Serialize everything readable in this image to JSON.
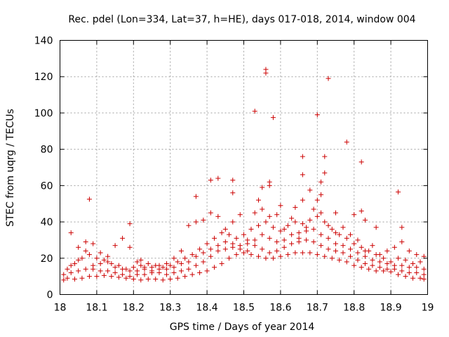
{
  "chart_data": {
    "type": "scatter",
    "title": "Rec. pdel (Lon=334, Lat=37, h=HE), days 017-018, 2014, window 004",
    "xlabel": "GPS time / Days of year 2014",
    "ylabel": "STEC from uqrg / TECUs",
    "xlim": [
      18,
      19
    ],
    "ylim": [
      0,
      140
    ],
    "x_ticks": [
      "18",
      "18.1",
      "18.2",
      "18.3",
      "18.4",
      "18.5",
      "18.6",
      "18.7",
      "18.8",
      "18.9",
      "19"
    ],
    "y_ticks": [
      "0",
      "20",
      "40",
      "60",
      "80",
      "100",
      "120",
      "140"
    ],
    "x_tick_values": [
      18,
      18.1,
      18.2,
      18.3,
      18.4,
      18.5,
      18.6,
      18.7,
      18.8,
      18.9,
      19
    ],
    "y_tick_values": [
      0,
      20,
      40,
      60,
      80,
      100,
      120,
      140
    ],
    "grid": true,
    "marker": "+",
    "color": "#cc0000",
    "series": [
      {
        "name": "STEC",
        "points": [
          [
            18.03,
            34
          ],
          [
            18.07,
            29
          ],
          [
            18.08,
            52.5
          ],
          [
            18.19,
            39
          ],
          [
            18.22,
            19
          ],
          [
            18.37,
            54
          ],
          [
            18.41,
            63
          ],
          [
            18.43,
            64
          ],
          [
            18.47,
            63
          ],
          [
            18.47,
            56
          ],
          [
            18.53,
            101
          ],
          [
            18.56,
            124
          ],
          [
            18.56,
            122
          ],
          [
            18.58,
            97.5
          ],
          [
            18.57,
            62
          ],
          [
            18.57,
            60
          ],
          [
            18.55,
            59
          ],
          [
            18.54,
            52
          ],
          [
            18.6,
            49
          ],
          [
            18.64,
            48
          ],
          [
            18.66,
            52
          ],
          [
            18.68,
            57.5
          ],
          [
            18.66,
            66
          ],
          [
            18.66,
            76
          ],
          [
            18.7,
            99
          ],
          [
            18.73,
            119
          ],
          [
            18.72,
            76
          ],
          [
            18.72,
            67
          ],
          [
            18.71,
            62
          ],
          [
            18.71,
            55
          ],
          [
            18.7,
            52
          ],
          [
            18.78,
            84
          ],
          [
            18.82,
            73
          ],
          [
            18.82,
            46
          ],
          [
            18.92,
            56.5
          ],
          [
            18.93,
            37
          ],
          [
            18.86,
            37
          ],
          [
            18.83,
            41
          ],
          [
            18.8,
            44
          ],
          [
            18.75,
            45
          ],
          [
            18.01,
            8
          ],
          [
            18.02,
            9
          ],
          [
            18.04,
            8.5
          ],
          [
            18.06,
            9
          ],
          [
            18.08,
            10
          ],
          [
            18.1,
            10
          ],
          [
            18.12,
            10.5
          ],
          [
            18.14,
            10
          ],
          [
            18.16,
            9.5
          ],
          [
            18.18,
            9
          ],
          [
            18.2,
            8.5
          ],
          [
            18.22,
            8
          ],
          [
            18.24,
            8.5
          ],
          [
            18.26,
            8.5
          ],
          [
            18.28,
            8
          ],
          [
            18.3,
            8.5
          ],
          [
            18.32,
            9
          ],
          [
            18.34,
            10
          ],
          [
            18.36,
            11
          ],
          [
            18.38,
            12
          ],
          [
            18.4,
            13
          ],
          [
            18.42,
            15
          ],
          [
            18.44,
            17
          ],
          [
            18.46,
            20
          ],
          [
            18.48,
            22
          ],
          [
            18.5,
            23
          ],
          [
            18.52,
            22
          ],
          [
            18.54,
            21
          ],
          [
            18.56,
            20
          ],
          [
            18.58,
            20
          ],
          [
            18.6,
            21
          ],
          [
            18.62,
            22
          ],
          [
            18.64,
            23
          ],
          [
            18.66,
            23
          ],
          [
            18.68,
            23
          ],
          [
            18.7,
            22
          ],
          [
            18.72,
            21
          ],
          [
            18.74,
            20
          ],
          [
            18.76,
            19
          ],
          [
            18.78,
            18
          ],
          [
            18.8,
            16
          ],
          [
            18.82,
            15
          ],
          [
            18.84,
            14
          ],
          [
            18.86,
            13
          ],
          [
            18.88,
            13
          ],
          [
            18.9,
            12.5
          ],
          [
            18.92,
            11
          ],
          [
            18.94,
            10
          ],
          [
            18.96,
            9
          ],
          [
            18.98,
            9
          ],
          [
            18.99,
            8.5
          ],
          [
            18.01,
            11
          ],
          [
            18.03,
            12
          ],
          [
            18.05,
            13
          ],
          [
            18.07,
            14
          ],
          [
            18.09,
            14
          ],
          [
            18.11,
            13
          ],
          [
            18.13,
            13
          ],
          [
            18.15,
            12
          ],
          [
            18.17,
            11
          ],
          [
            18.19,
            10
          ],
          [
            18.21,
            11
          ],
          [
            18.23,
            11
          ],
          [
            18.25,
            12
          ],
          [
            18.27,
            12
          ],
          [
            18.29,
            11
          ],
          [
            18.31,
            12
          ],
          [
            18.33,
            13
          ],
          [
            18.35,
            14
          ],
          [
            18.37,
            16
          ],
          [
            18.39,
            18
          ],
          [
            18.41,
            21
          ],
          [
            18.43,
            24
          ],
          [
            18.45,
            25
          ],
          [
            18.47,
            26
          ],
          [
            18.49,
            27
          ],
          [
            18.51,
            28
          ],
          [
            18.53,
            27
          ],
          [
            18.55,
            25
          ],
          [
            18.57,
            23
          ],
          [
            18.59,
            24
          ],
          [
            18.61,
            26
          ],
          [
            18.63,
            28
          ],
          [
            18.65,
            29
          ],
          [
            18.67,
            30
          ],
          [
            18.69,
            29
          ],
          [
            18.71,
            27
          ],
          [
            18.73,
            25
          ],
          [
            18.75,
            24
          ],
          [
            18.77,
            23
          ],
          [
            18.79,
            21
          ],
          [
            18.81,
            19
          ],
          [
            18.83,
            17
          ],
          [
            18.85,
            16
          ],
          [
            18.87,
            15
          ],
          [
            18.89,
            14
          ],
          [
            18.91,
            14
          ],
          [
            18.93,
            13
          ],
          [
            18.95,
            12
          ],
          [
            18.97,
            12
          ],
          [
            18.99,
            11
          ],
          [
            18.02,
            14
          ],
          [
            18.04,
            17
          ],
          [
            18.06,
            20
          ],
          [
            18.08,
            22
          ],
          [
            18.1,
            20
          ],
          [
            18.12,
            19
          ],
          [
            18.14,
            17
          ],
          [
            18.16,
            16
          ],
          [
            18.18,
            14
          ],
          [
            18.2,
            15
          ],
          [
            18.22,
            16
          ],
          [
            18.24,
            17
          ],
          [
            18.26,
            16
          ],
          [
            18.28,
            15
          ],
          [
            18.3,
            16
          ],
          [
            18.32,
            18
          ],
          [
            18.34,
            20
          ],
          [
            18.36,
            22
          ],
          [
            18.38,
            25
          ],
          [
            18.4,
            28
          ],
          [
            18.42,
            31
          ],
          [
            18.44,
            34
          ],
          [
            18.46,
            33
          ],
          [
            18.48,
            31
          ],
          [
            18.5,
            33
          ],
          [
            18.52,
            36
          ],
          [
            18.54,
            38
          ],
          [
            18.56,
            40
          ],
          [
            18.58,
            37
          ],
          [
            18.6,
            35
          ],
          [
            18.62,
            38
          ],
          [
            18.64,
            40
          ],
          [
            18.66,
            39
          ],
          [
            18.68,
            41
          ],
          [
            18.7,
            43
          ],
          [
            18.72,
            40
          ],
          [
            18.74,
            36
          ],
          [
            18.76,
            33
          ],
          [
            18.78,
            31
          ],
          [
            18.8,
            28
          ],
          [
            18.82,
            26
          ],
          [
            18.84,
            24
          ],
          [
            18.86,
            22
          ],
          [
            18.88,
            20
          ],
          [
            18.9,
            18
          ],
          [
            18.92,
            20
          ],
          [
            18.94,
            19
          ],
          [
            18.96,
            17
          ],
          [
            18.98,
            18
          ],
          [
            18.05,
            26
          ],
          [
            18.07,
            24
          ],
          [
            18.09,
            28
          ],
          [
            18.11,
            23
          ],
          [
            18.13,
            21
          ],
          [
            18.15,
            27
          ],
          [
            18.17,
            31
          ],
          [
            18.19,
            26
          ],
          [
            18.21,
            18
          ],
          [
            18.23,
            15
          ],
          [
            18.25,
            13
          ],
          [
            18.27,
            14
          ],
          [
            18.29,
            17
          ],
          [
            18.31,
            20
          ],
          [
            18.33,
            24
          ],
          [
            18.35,
            38
          ],
          [
            18.37,
            40
          ],
          [
            18.39,
            41
          ],
          [
            18.41,
            45
          ],
          [
            18.43,
            43
          ],
          [
            18.45,
            36
          ],
          [
            18.47,
            40
          ],
          [
            18.49,
            44
          ],
          [
            18.51,
            30
          ],
          [
            18.53,
            45
          ],
          [
            18.55,
            47
          ],
          [
            18.57,
            43
          ],
          [
            18.59,
            44
          ],
          [
            18.61,
            36
          ],
          [
            18.63,
            42
          ],
          [
            18.65,
            31
          ],
          [
            18.67,
            35
          ],
          [
            18.69,
            47
          ],
          [
            18.71,
            45
          ],
          [
            18.73,
            38
          ],
          [
            18.75,
            34
          ],
          [
            18.77,
            37
          ],
          [
            18.79,
            33
          ],
          [
            18.81,
            30
          ],
          [
            18.83,
            24
          ],
          [
            18.85,
            27
          ],
          [
            18.87,
            22
          ],
          [
            18.89,
            24
          ],
          [
            18.91,
            26
          ],
          [
            18.93,
            29
          ],
          [
            18.95,
            24
          ],
          [
            18.97,
            22
          ],
          [
            18.99,
            21
          ],
          [
            18.03,
            16
          ],
          [
            18.05,
            19
          ],
          [
            18.09,
            16
          ],
          [
            18.11,
            17
          ],
          [
            18.13,
            18
          ],
          [
            18.15,
            15
          ],
          [
            18.17,
            14
          ],
          [
            18.19,
            13
          ],
          [
            18.21,
            13
          ],
          [
            18.23,
            14
          ],
          [
            18.25,
            15
          ],
          [
            18.27,
            16
          ],
          [
            18.29,
            14
          ],
          [
            18.31,
            15
          ],
          [
            18.33,
            17
          ],
          [
            18.35,
            18
          ],
          [
            18.37,
            21
          ],
          [
            18.39,
            23
          ],
          [
            18.41,
            25
          ],
          [
            18.43,
            27
          ],
          [
            18.45,
            29
          ],
          [
            18.47,
            28
          ],
          [
            18.49,
            25
          ],
          [
            18.51,
            24
          ],
          [
            18.53,
            30
          ],
          [
            18.55,
            33
          ],
          [
            18.57,
            31
          ],
          [
            18.59,
            29
          ],
          [
            18.61,
            30
          ],
          [
            18.63,
            33
          ],
          [
            18.65,
            34
          ],
          [
            18.67,
            37
          ],
          [
            18.69,
            36
          ],
          [
            18.71,
            33
          ],
          [
            18.73,
            31
          ],
          [
            18.75,
            28
          ],
          [
            18.77,
            27
          ],
          [
            18.79,
            25
          ],
          [
            18.81,
            23
          ],
          [
            18.83,
            21
          ],
          [
            18.85,
            19
          ],
          [
            18.87,
            18
          ],
          [
            18.89,
            17
          ],
          [
            18.91,
            16
          ],
          [
            18.93,
            16
          ],
          [
            18.95,
            15
          ],
          [
            18.97,
            15
          ],
          [
            18.99,
            14
          ]
        ]
      }
    ]
  }
}
